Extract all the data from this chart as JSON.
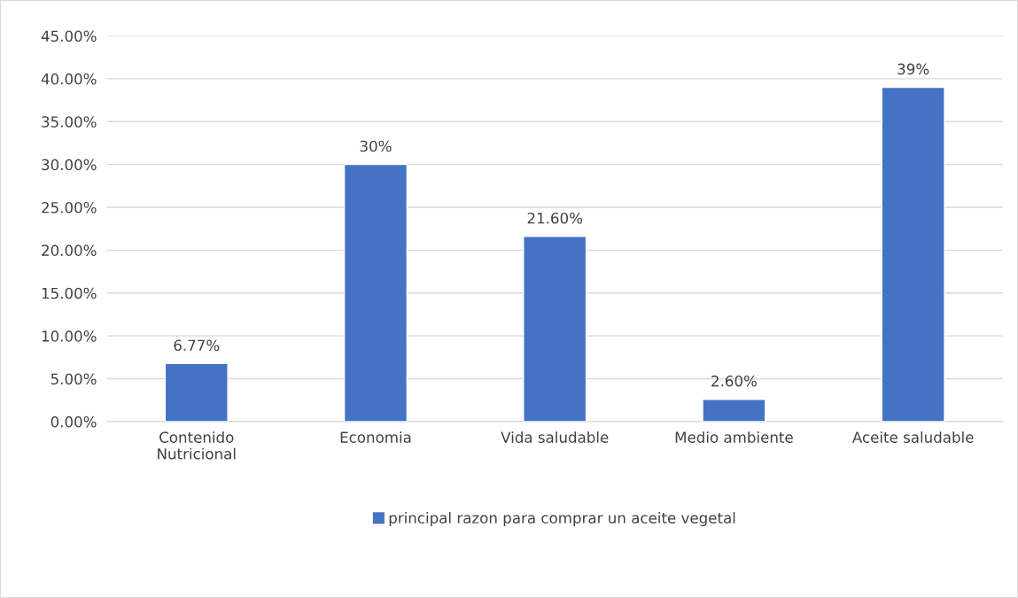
{
  "chart_data": {
    "type": "bar",
    "categories": [
      "Contenido Nutricional",
      "Economia",
      "Vida saludable",
      "Medio ambiente",
      "Aceite saludable"
    ],
    "series": [
      {
        "name": "principal razon para comprar un aceite vegetal",
        "color": "#4472c4",
        "values": [
          6.77,
          30,
          21.6,
          2.6,
          39
        ],
        "value_labels": [
          "6.77%",
          "30%",
          "21.60%",
          "2.60%",
          "39%"
        ]
      }
    ],
    "ylim": [
      0,
      45
    ],
    "yticks": [
      {
        "value": 0,
        "label": "0.00%"
      },
      {
        "value": 5,
        "label": "5.00%"
      },
      {
        "value": 10,
        "label": "10.00%"
      },
      {
        "value": 15,
        "label": "15.00%"
      },
      {
        "value": 20,
        "label": "20.00%"
      },
      {
        "value": 25,
        "label": "25.00%"
      },
      {
        "value": 30,
        "label": "30.00%"
      },
      {
        "value": 35,
        "label": "35.00%"
      },
      {
        "value": 40,
        "label": "40.00%"
      },
      {
        "value": 45,
        "label": "45.00%"
      }
    ],
    "grid": "y",
    "legend": "bottom"
  }
}
